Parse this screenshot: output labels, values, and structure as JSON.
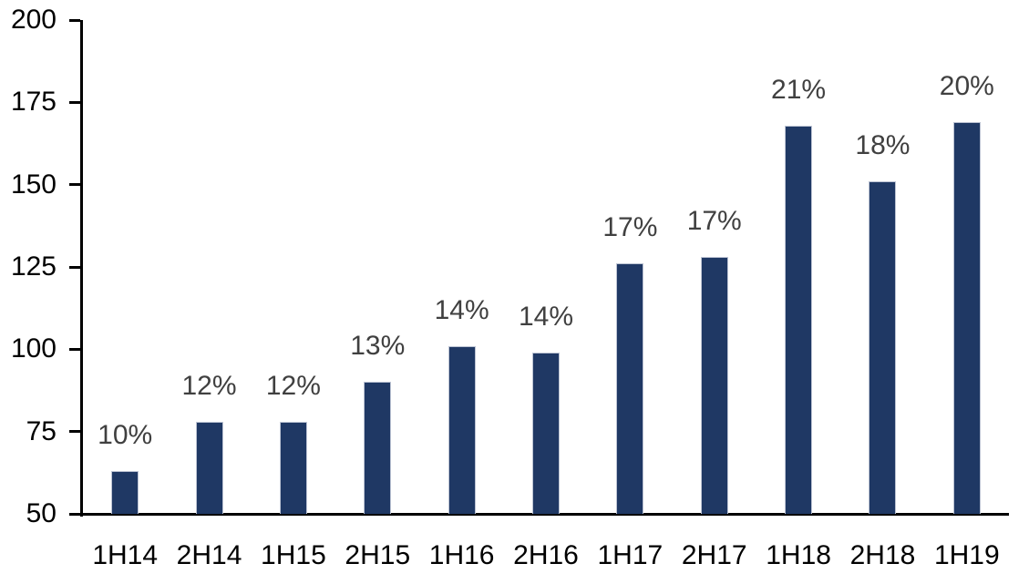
{
  "chart_data": {
    "type": "bar",
    "title": "",
    "xlabel": "",
    "ylabel": "",
    "categories": [
      "1H14",
      "2H14",
      "1H15",
      "2H15",
      "1H16",
      "2H16",
      "1H17",
      "2H17",
      "1H18",
      "2H18",
      "1H19"
    ],
    "values": [
      63,
      78,
      78,
      90,
      101,
      99,
      126,
      128,
      168,
      151,
      169
    ],
    "bar_labels": [
      "10%",
      "12%",
      "12%",
      "13%",
      "14%",
      "14%",
      "17%",
      "17%",
      "21%",
      "18%",
      "20%"
    ],
    "y_ticks": [
      50,
      75,
      100,
      125,
      150,
      175,
      200
    ],
    "ylim": [
      50,
      200
    ],
    "grid": false,
    "legend": false,
    "colors": {
      "bar_fill": "#1F3864",
      "bar_border": "#BCC3D3",
      "value_label": "#404040",
      "axis": "#000000",
      "background": "#ffffff"
    }
  }
}
